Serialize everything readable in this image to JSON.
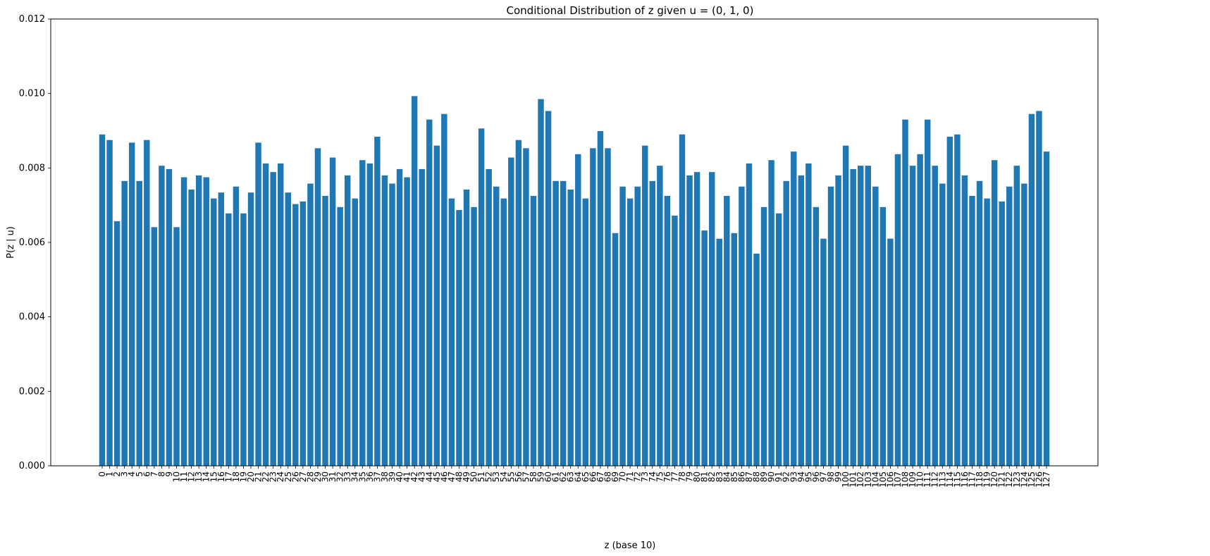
{
  "chart_data": {
    "type": "bar",
    "title": "Conditional Distribution of z given u = (0, 1, 0)",
    "xlabel": "z (base 10)",
    "ylabel": "P(z | u)",
    "ylim": [
      0,
      0.012
    ],
    "yticks": [
      "0.000",
      "0.002",
      "0.004",
      "0.006",
      "0.008",
      "0.010",
      "0.012"
    ],
    "ytick_values": [
      0,
      0.002,
      0.004,
      0.006,
      0.008,
      0.01,
      0.012
    ],
    "grid": false,
    "bar_color": "#1f77b4",
    "categories": [
      "0",
      "1",
      "2",
      "3",
      "4",
      "5",
      "6",
      "7",
      "8",
      "9",
      "10",
      "11",
      "12",
      "13",
      "14",
      "15",
      "16",
      "17",
      "18",
      "19",
      "20",
      "21",
      "22",
      "23",
      "24",
      "25",
      "26",
      "27",
      "28",
      "29",
      "30",
      "31",
      "32",
      "33",
      "34",
      "35",
      "36",
      "37",
      "38",
      "39",
      "40",
      "41",
      "42",
      "43",
      "44",
      "45",
      "46",
      "47",
      "48",
      "49",
      "50",
      "51",
      "52",
      "53",
      "54",
      "55",
      "56",
      "57",
      "58",
      "59",
      "60",
      "61",
      "62",
      "63",
      "64",
      "65",
      "66",
      "67",
      "68",
      "69",
      "70",
      "71",
      "72",
      "73",
      "74",
      "75",
      "76",
      "77",
      "78",
      "79",
      "80",
      "81",
      "82",
      "83",
      "84",
      "85",
      "86",
      "87",
      "88",
      "89",
      "90",
      "91",
      "92",
      "93",
      "94",
      "95",
      "96",
      "97",
      "98",
      "99",
      "100",
      "101",
      "102",
      "103",
      "104",
      "105",
      "106",
      "107",
      "108",
      "109",
      "110",
      "111",
      "112",
      "113",
      "114",
      "115",
      "116",
      "117",
      "118",
      "119",
      "120",
      "121",
      "122",
      "123",
      "124",
      "125",
      "126",
      "127"
    ],
    "values": [
      0.0089,
      0.00875,
      0.00657,
      0.00765,
      0.00868,
      0.00765,
      0.00875,
      0.00641,
      0.00806,
      0.00797,
      0.00641,
      0.00775,
      0.00742,
      0.0078,
      0.00775,
      0.00718,
      0.00734,
      0.00678,
      0.0075,
      0.00678,
      0.00734,
      0.00868,
      0.00812,
      0.00789,
      0.00812,
      0.00734,
      0.00703,
      0.0071,
      0.00758,
      0.00853,
      0.00725,
      0.00828,
      0.00695,
      0.0078,
      0.00718,
      0.00821,
      0.00812,
      0.00884,
      0.0078,
      0.00758,
      0.00797,
      0.00775,
      0.00993,
      0.00797,
      0.0093,
      0.0086,
      0.00945,
      0.00718,
      0.00687,
      0.00742,
      0.00695,
      0.00906,
      0.00797,
      0.0075,
      0.00718,
      0.00828,
      0.00875,
      0.00853,
      0.00725,
      0.00985,
      0.00953,
      0.00765,
      0.00765,
      0.00742,
      0.00837,
      0.00718,
      0.00853,
      0.00899,
      0.00853,
      0.00625,
      0.0075,
      0.00718,
      0.0075,
      0.0086,
      0.00765,
      0.00806,
      0.00725,
      0.00672,
      0.0089,
      0.0078,
      0.00789,
      0.00632,
      0.00789,
      0.0061,
      0.00725,
      0.00625,
      0.0075,
      0.00812,
      0.0057,
      0.00695,
      0.00821,
      0.00678,
      0.00765,
      0.00844,
      0.0078,
      0.00812,
      0.00695,
      0.0061,
      0.0075,
      0.0078,
      0.0086,
      0.00797,
      0.00806,
      0.00806,
      0.0075,
      0.00695,
      0.0061,
      0.00837,
      0.0093,
      0.00806,
      0.00837,
      0.0093,
      0.00806,
      0.00758,
      0.00884,
      0.0089,
      0.0078,
      0.00725,
      0.00765,
      0.00718,
      0.00821,
      0.0071,
      0.0075,
      0.00806,
      0.00758,
      0.00945,
      0.00953,
      0.00844
    ]
  }
}
